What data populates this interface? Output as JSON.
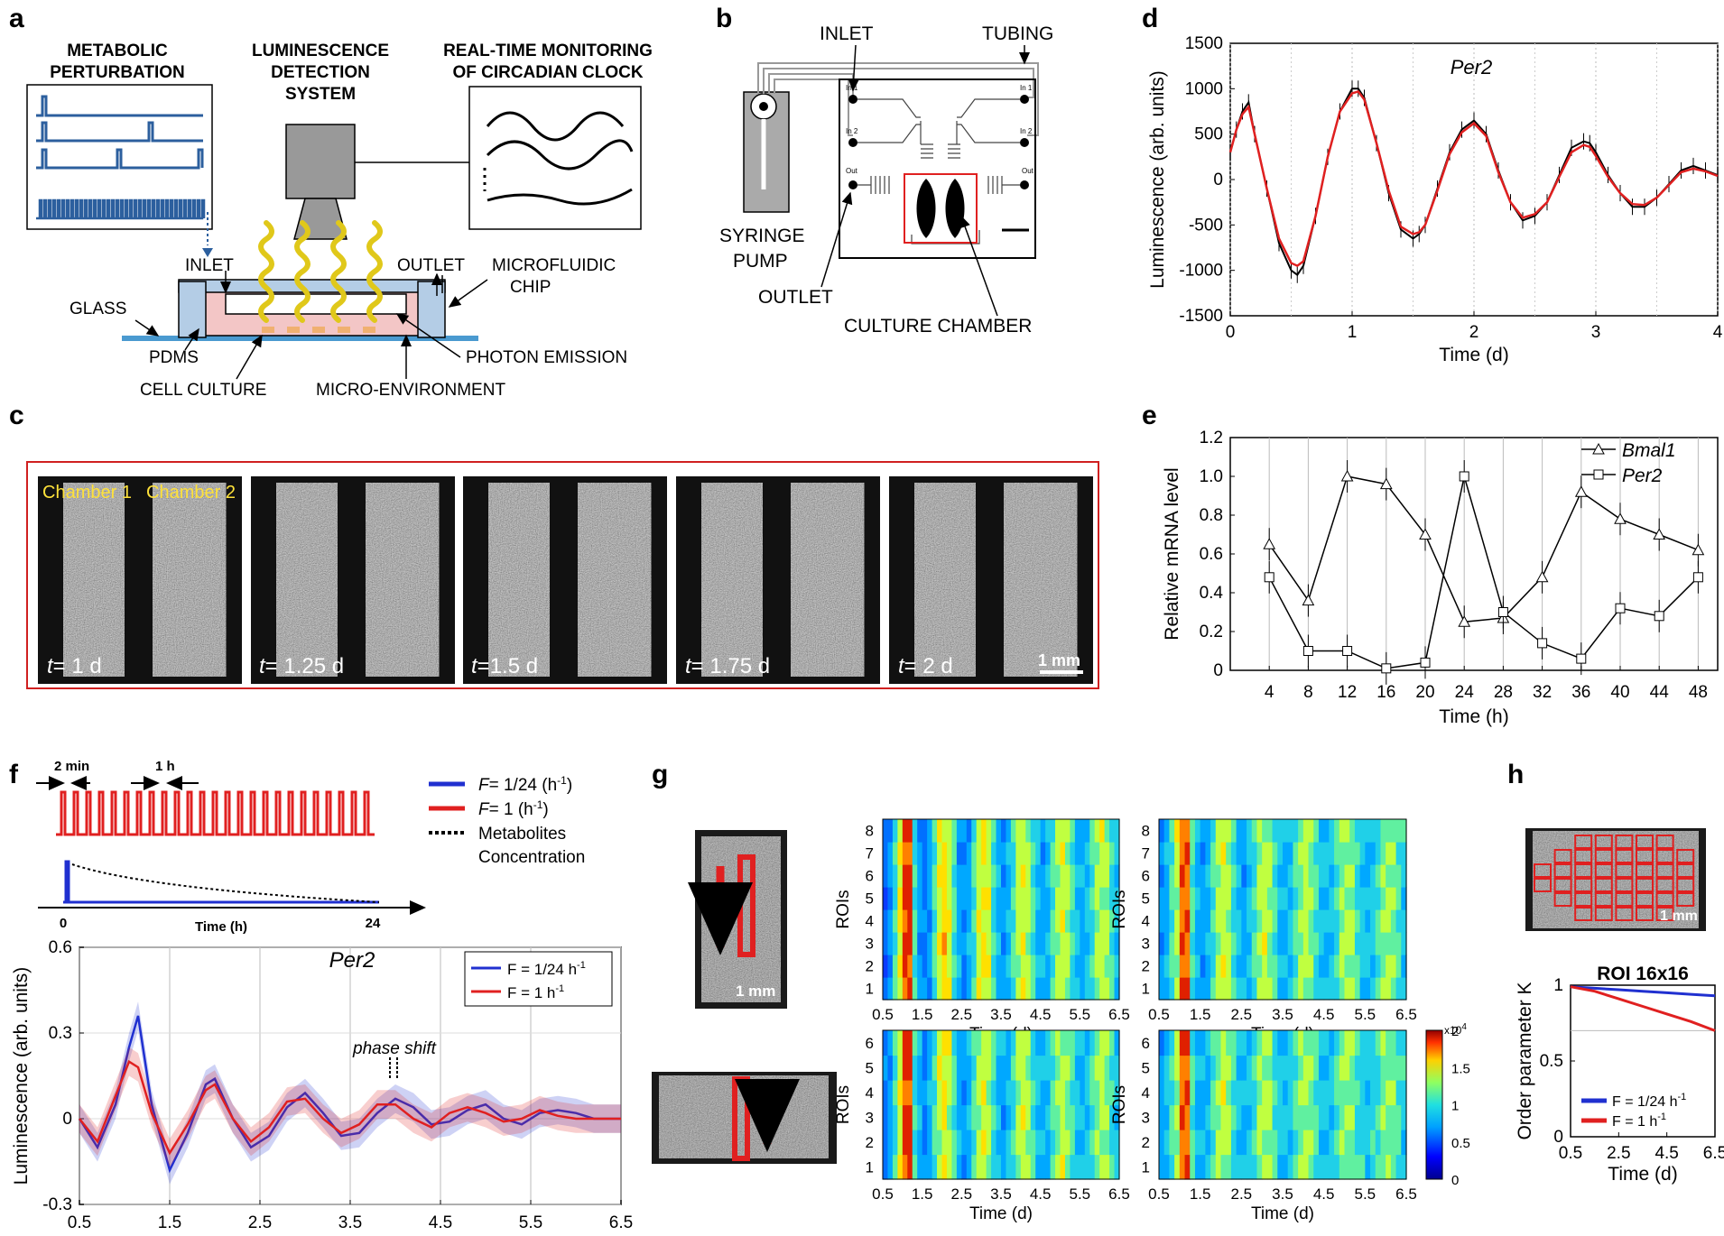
{
  "panels": {
    "a": "a",
    "b": "b",
    "c": "c",
    "d": "d",
    "e": "e",
    "f": "f",
    "g": "g",
    "h": "h"
  },
  "panel_a": {
    "metabolic": [
      "METABOLIC",
      "PERTURBATION"
    ],
    "detection": [
      "LUMINESCENCE",
      "DETECTION",
      "SYSTEM"
    ],
    "monitoring": [
      "REAL-TIME MONITORING",
      "OF CIRCADIAN CLOCK"
    ],
    "inlet": "INLET",
    "outlet": "OUTLET",
    "chip": [
      "MICROFLUIDIC",
      "CHIP"
    ],
    "glass": "GLASS",
    "pdms": "PDMS",
    "cell_culture": "CELL CULTURE",
    "photon": "PHOTON EMISSION",
    "micro_env": "MICRO-ENVIRONMENT"
  },
  "panel_b": {
    "inlet": "INLET",
    "tubing": "TUBING",
    "syringe": [
      "SYRINGE",
      "PUMP"
    ],
    "outlet": "OUTLET",
    "chamber": "CULTURE CHAMBER",
    "ports": [
      "In 1",
      "In 2",
      "Out",
      "In 1",
      "In 2",
      "Out"
    ]
  },
  "panel_c": {
    "chamber1": "Chamber 1",
    "chamber2": "Chamber 2",
    "times": [
      "= 1 d",
      "= 1.25 d",
      "=1.5 d",
      "= 1.75 d",
      "= 2 d"
    ],
    "t": "t",
    "scale": "1 mm",
    "brightness": [
      0.55,
      0.8,
      0.28,
      0.7,
      0.85
    ]
  },
  "chart_data": [
    {
      "id": "d",
      "type": "line",
      "title": "Per2",
      "xlabel": "Time (d)",
      "ylabel": "Luminescence (arb. units)",
      "xlim": [
        0,
        4
      ],
      "ylim": [
        -1500,
        1500
      ],
      "xticks": [
        "0",
        "1",
        "2",
        "3",
        "4"
      ],
      "yticks": [
        "-1500",
        "-1000",
        "-500",
        "0",
        "500",
        "1000",
        "1500"
      ],
      "series": [
        {
          "color": "#000000",
          "x": [
            0,
            0.05,
            0.1,
            0.15,
            0.2,
            0.3,
            0.4,
            0.5,
            0.55,
            0.6,
            0.7,
            0.8,
            0.9,
            1.0,
            1.05,
            1.1,
            1.2,
            1.3,
            1.4,
            1.5,
            1.55,
            1.6,
            1.7,
            1.8,
            1.9,
            2.0,
            2.1,
            2.2,
            2.3,
            2.4,
            2.5,
            2.6,
            2.7,
            2.8,
            2.9,
            2.95,
            3.0,
            3.1,
            3.2,
            3.3,
            3.4,
            3.5,
            3.6,
            3.7,
            3.8,
            3.9,
            4.0
          ],
          "y": [
            300,
            550,
            750,
            850,
            500,
            -100,
            -700,
            -1000,
            -1050,
            -950,
            -400,
            250,
            750,
            1000,
            1000,
            900,
            400,
            -150,
            -550,
            -650,
            -600,
            -500,
            -100,
            300,
            550,
            650,
            500,
            100,
            -250,
            -450,
            -400,
            -250,
            50,
            350,
            420,
            400,
            300,
            50,
            -150,
            -300,
            -300,
            -200,
            -50,
            100,
            150,
            100,
            50
          ]
        },
        {
          "color": "#e02020",
          "x": [
            0,
            0.05,
            0.1,
            0.15,
            0.2,
            0.3,
            0.4,
            0.5,
            0.55,
            0.6,
            0.7,
            0.8,
            0.9,
            1.0,
            1.05,
            1.1,
            1.2,
            1.3,
            1.4,
            1.5,
            1.55,
            1.6,
            1.7,
            1.8,
            1.9,
            2.0,
            2.1,
            2.2,
            2.3,
            2.4,
            2.5,
            2.6,
            2.7,
            2.8,
            2.9,
            2.95,
            3.0,
            3.1,
            3.2,
            3.3,
            3.4,
            3.5,
            3.6,
            3.7,
            3.8,
            3.9,
            4.0
          ],
          "y": [
            300,
            550,
            720,
            800,
            500,
            -100,
            -650,
            -920,
            -950,
            -900,
            -400,
            250,
            750,
            950,
            970,
            880,
            400,
            -120,
            -520,
            -600,
            -580,
            -500,
            -120,
            280,
            520,
            620,
            480,
            80,
            -250,
            -420,
            -380,
            -250,
            30,
            300,
            380,
            360,
            260,
            30,
            -150,
            -270,
            -280,
            -200,
            -60,
            80,
            120,
            90,
            40
          ]
        }
      ]
    },
    {
      "id": "e",
      "type": "line",
      "xlabel": "Time (h)",
      "ylabel": "Relative mRNA level",
      "xlim": [
        0,
        50
      ],
      "ylim": [
        0,
        1.2
      ],
      "xticks": [
        "4",
        "8",
        "12",
        "16",
        "20",
        "24",
        "28",
        "32",
        "36",
        "40",
        "44",
        "48"
      ],
      "yticks": [
        "0",
        "0.2",
        "0.4",
        "0.6",
        "0.8",
        "1.0",
        "1.2"
      ],
      "series": [
        {
          "name": "Bmal1",
          "marker": "triangle",
          "x": [
            4,
            8,
            12,
            16,
            20,
            24,
            28,
            32,
            36,
            40,
            44,
            48
          ],
          "y": [
            0.65,
            0.36,
            1.0,
            0.96,
            0.7,
            0.25,
            0.27,
            0.48,
            0.92,
            0.78,
            0.7,
            0.62
          ]
        },
        {
          "name": "Per2",
          "marker": "square",
          "x": [
            4,
            8,
            12,
            16,
            20,
            24,
            28,
            32,
            36,
            40,
            44,
            48
          ],
          "y": [
            0.48,
            0.1,
            0.1,
            0.01,
            0.04,
            1.0,
            0.3,
            0.14,
            0.06,
            0.32,
            0.28,
            0.48
          ]
        }
      ]
    },
    {
      "id": "f",
      "type": "line",
      "title": "Per2",
      "xlabel": "Time (d)",
      "ylabel": "Luminescence (arb. units)",
      "xlim": [
        0.5,
        6.5
      ],
      "ylim": [
        -0.3,
        0.6
      ],
      "xticks": [
        "0.5",
        "1.5",
        "2.5",
        "3.5",
        "4.5",
        "5.5",
        "6.5"
      ],
      "yticks": [
        "-0.3",
        "0",
        "0.3",
        "0.6"
      ],
      "annotation": "phase shift",
      "series": [
        {
          "name": "F = 1/24 h",
          "color": "#2030d0",
          "x": [
            0.5,
            0.7,
            0.9,
            1.05,
            1.15,
            1.3,
            1.5,
            1.7,
            1.9,
            2.0,
            2.2,
            2.4,
            2.6,
            2.8,
            3.0,
            3.2,
            3.4,
            3.6,
            3.8,
            4.0,
            4.2,
            4.4,
            4.6,
            4.8,
            5.0,
            5.2,
            5.4,
            5.6,
            5.8,
            6.0,
            6.2,
            6.5
          ],
          "y": [
            0,
            -0.1,
            0.05,
            0.25,
            0.36,
            0.05,
            -0.18,
            -0.05,
            0.12,
            0.14,
            0.0,
            -0.1,
            -0.06,
            0.04,
            0.09,
            0.02,
            -0.06,
            -0.05,
            0.02,
            0.07,
            0.04,
            -0.02,
            -0.01,
            0.03,
            0.05,
            0.0,
            -0.02,
            0.02,
            0.03,
            0.02,
            0.0,
            0.0
          ]
        },
        {
          "name": "F = 1 h",
          "color": "#e02020",
          "x": [
            0.5,
            0.7,
            0.9,
            1.05,
            1.15,
            1.3,
            1.5,
            1.7,
            1.9,
            2.0,
            2.2,
            2.4,
            2.6,
            2.8,
            3.0,
            3.2,
            3.4,
            3.6,
            3.8,
            4.0,
            4.2,
            4.4,
            4.6,
            4.8,
            5.0,
            5.2,
            5.4,
            5.6,
            5.8,
            6.0,
            6.2,
            6.5
          ],
          "y": [
            0,
            -0.08,
            0.08,
            0.2,
            0.18,
            0.02,
            -0.12,
            -0.02,
            0.1,
            0.12,
            0.0,
            -0.08,
            -0.03,
            0.06,
            0.07,
            0.0,
            -0.05,
            -0.02,
            0.05,
            0.05,
            0.0,
            -0.03,
            0.02,
            0.04,
            0.02,
            -0.01,
            0.0,
            0.03,
            0.01,
            0.0,
            0.0,
            0.0
          ]
        }
      ]
    },
    {
      "id": "h",
      "type": "line",
      "title": "ROI 16x16",
      "xlabel": "Time (d)",
      "ylabel": "Order parameter K",
      "xlim": [
        0.5,
        6.5
      ],
      "ylim": [
        0,
        1
      ],
      "xticks": [
        "0.5",
        "2.5",
        "4.5",
        "6.5"
      ],
      "yticks": [
        "0",
        "0.5",
        "1"
      ],
      "series": [
        {
          "name": "F = 1/24 h",
          "color": "#2030d0",
          "x": [
            0.5,
            1.5,
            2.5,
            3.5,
            4.5,
            5.5,
            6.5
          ],
          "y": [
            0.99,
            0.98,
            0.97,
            0.96,
            0.95,
            0.94,
            0.93
          ]
        },
        {
          "name": "F = 1 h",
          "color": "#e02020",
          "x": [
            0.5,
            1.5,
            2.5,
            3.5,
            4.5,
            5.5,
            6.5
          ],
          "y": [
            0.99,
            0.96,
            0.91,
            0.86,
            0.81,
            0.76,
            0.7
          ]
        }
      ]
    },
    {
      "id": "g",
      "type": "heatmap",
      "xlabel": "Time (d)",
      "ylabel": "ROIs",
      "xticks": [
        "0.5",
        "1.5",
        "2.5",
        "3.5",
        "4.5",
        "5.5",
        "6.5"
      ],
      "rows_top": [
        "1",
        "2",
        "3",
        "4",
        "5",
        "6",
        "7",
        "8"
      ],
      "rows_bottom": [
        "1",
        "2",
        "3",
        "4",
        "5",
        "6"
      ],
      "colorbar": {
        "ticks": [
          "0",
          "0.5",
          "1",
          "1.5",
          "2"
        ],
        "exponent": "x10",
        "exp_power": "4"
      }
    }
  ],
  "panel_f_schematic": {
    "two_min": "2 min",
    "one_h": "1 h",
    "zero": "0",
    "twentyfour": "24",
    "time_label": "Time (h)",
    "legend": [
      "F",
      "= 1/24 (h",
      "-1",
      ")",
      "= 1 (h",
      "Metabolites",
      "Concentration"
    ]
  },
  "panel_g": {
    "scale": "1 mm"
  },
  "panel_h": {
    "scale": "1 mm"
  },
  "legend_sup": "-1"
}
